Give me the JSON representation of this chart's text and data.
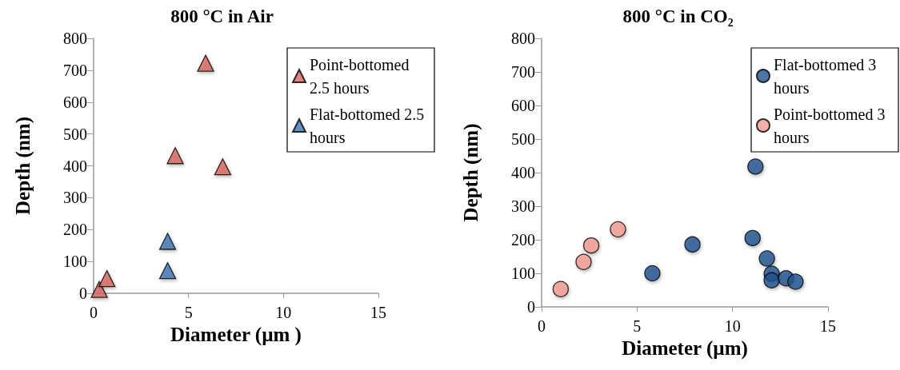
{
  "chart_data": [
    {
      "type": "scatter",
      "title": "800 °C in Air",
      "xlabel": "Diameter (µm )",
      "ylabel": "Depth (nm)",
      "xlim": [
        0,
        15
      ],
      "xticks": [
        0,
        5,
        10,
        15
      ],
      "ylim": [
        0,
        800
      ],
      "yticks": [
        0,
        100,
        200,
        300,
        400,
        500,
        600,
        700,
        800
      ],
      "grid": false,
      "legend": "top right",
      "marker": "triangle",
      "series": [
        {
          "name": "Point-bottomed 2.5 hours",
          "color": "#d9675f",
          "x": [
            0.3,
            0.7,
            5.9,
            4.3,
            6.8
          ],
          "values": [
            12,
            46,
            722,
            432,
            397
          ]
        },
        {
          "name": "Flat-bottomed 2.5 hours",
          "color": "#3d76b5",
          "x": [
            3.9,
            3.9
          ],
          "values": [
            163,
            71
          ]
        }
      ]
    },
    {
      "type": "scatter",
      "title": "800 °C in CO₂",
      "xlabel": "Diameter (µm)",
      "ylabel": "Depth (nm)",
      "xlim": [
        0,
        15
      ],
      "xticks": [
        0,
        5,
        10,
        15
      ],
      "ylim": [
        0,
        800
      ],
      "yticks": [
        0,
        100,
        200,
        300,
        400,
        500,
        600,
        700,
        800
      ],
      "grid": false,
      "legend": "top right",
      "marker": "circle",
      "series": [
        {
          "name": "Flat-bottomed 3 hours",
          "color": "#215490",
          "x": [
            5.8,
            7.9,
            11.2,
            11.05,
            11.8,
            12.05,
            12.05,
            12.8,
            13.3
          ],
          "values": [
            100,
            186,
            418,
            205,
            144,
            99,
            79,
            85,
            75
          ]
        },
        {
          "name": "Point-bottomed 3 hours",
          "color": "#f29b94",
          "x": [
            1.0,
            2.2,
            2.6,
            4.0
          ],
          "values": [
            53,
            134,
            183,
            231
          ]
        }
      ]
    }
  ]
}
